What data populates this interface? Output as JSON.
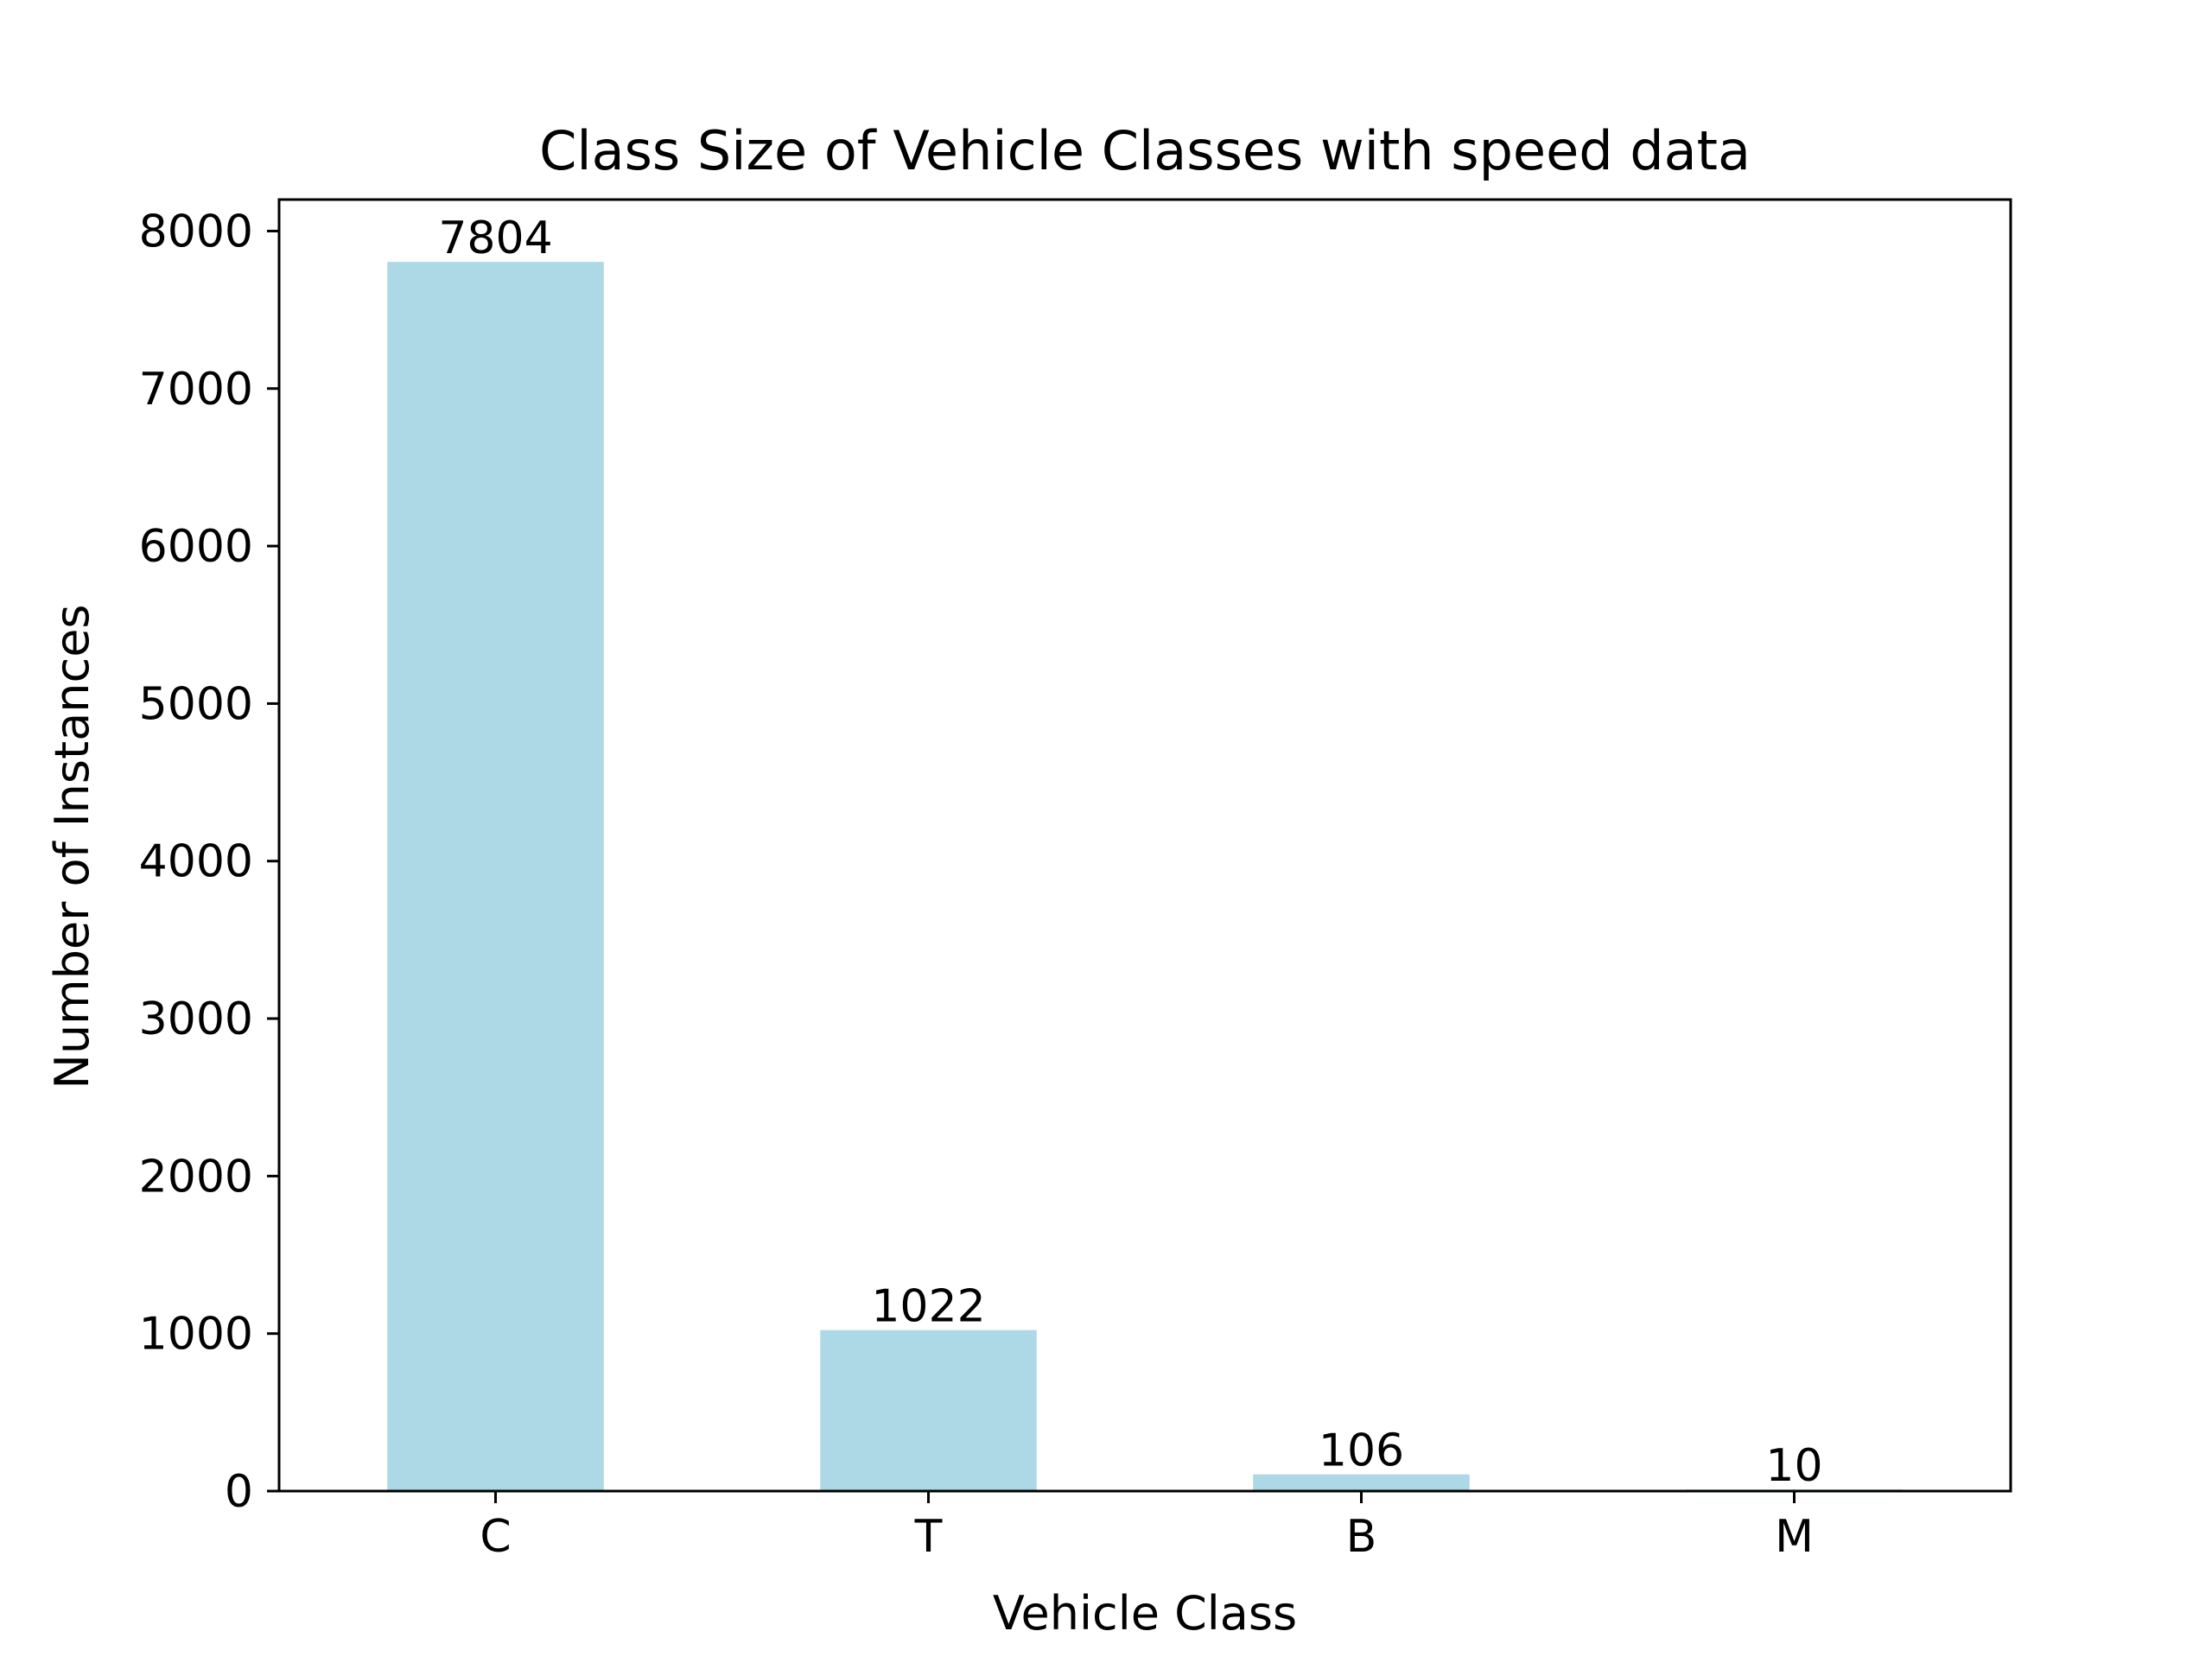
{
  "chart_data": {
    "type": "bar",
    "title": "Class Size of Vehicle Classes with speed data",
    "xlabel": "Vehicle Class",
    "ylabel": "Number of Instances",
    "categories": [
      "C",
      "T",
      "B",
      "M"
    ],
    "values": [
      7804,
      1022,
      106,
      10
    ],
    "value_labels": [
      "7804",
      "1022",
      "106",
      "10"
    ],
    "ylim": [
      0,
      8200
    ],
    "yticks": [
      0,
      1000,
      2000,
      3000,
      4000,
      5000,
      6000,
      7000,
      8000
    ],
    "ytick_labels": [
      "0",
      "1000",
      "2000",
      "3000",
      "4000",
      "5000",
      "6000",
      "7000",
      "8000"
    ],
    "grid": false,
    "legend": false,
    "bar_color": "#add8e6"
  }
}
